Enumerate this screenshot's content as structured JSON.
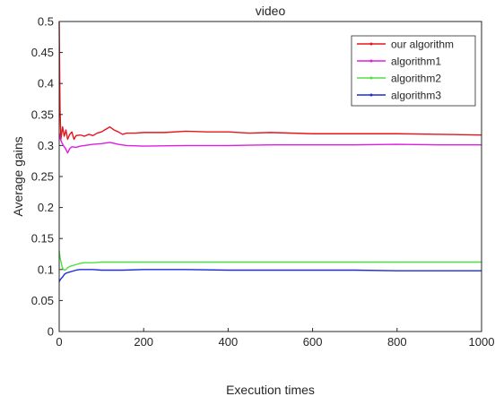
{
  "chart_data": {
    "type": "line",
    "title": "video",
    "xlabel": "Execution times",
    "ylabel": "Average gains",
    "xlim": [
      0,
      1000
    ],
    "ylim": [
      0,
      0.5
    ],
    "xticks": [
      0,
      200,
      400,
      600,
      800,
      1000
    ],
    "yticks": [
      0,
      0.05,
      0.1,
      0.15,
      0.2,
      0.25,
      0.3,
      0.35,
      0.4,
      0.45,
      0.5
    ],
    "grid": false,
    "legend_position": "top-right",
    "series": [
      {
        "name": "our algorithm",
        "color": "#e8141b",
        "x": [
          0,
          2,
          4,
          8,
          12,
          16,
          20,
          25,
          30,
          35,
          40,
          50,
          60,
          70,
          80,
          90,
          100,
          110,
          120,
          130,
          140,
          150,
          160,
          180,
          200,
          250,
          300,
          350,
          400,
          450,
          500,
          600,
          700,
          800,
          900,
          1000
        ],
        "y": [
          0.5,
          0.36,
          0.31,
          0.33,
          0.315,
          0.325,
          0.31,
          0.318,
          0.322,
          0.31,
          0.316,
          0.317,
          0.315,
          0.318,
          0.316,
          0.32,
          0.322,
          0.326,
          0.33,
          0.325,
          0.322,
          0.318,
          0.32,
          0.32,
          0.321,
          0.321,
          0.323,
          0.322,
          0.322,
          0.32,
          0.321,
          0.319,
          0.319,
          0.319,
          0.318,
          0.317
        ]
      },
      {
        "name": "algorithm1",
        "color": "#e21be2",
        "x": [
          0,
          3,
          6,
          10,
          15,
          20,
          25,
          30,
          40,
          50,
          60,
          80,
          100,
          120,
          140,
          160,
          200,
          300,
          400,
          500,
          600,
          700,
          800,
          900,
          1000
        ],
        "y": [
          0.32,
          0.31,
          0.305,
          0.3,
          0.295,
          0.288,
          0.295,
          0.298,
          0.297,
          0.299,
          0.3,
          0.302,
          0.303,
          0.305,
          0.302,
          0.3,
          0.299,
          0.3,
          0.3,
          0.301,
          0.301,
          0.301,
          0.302,
          0.301,
          0.301
        ]
      },
      {
        "name": "algorithm2",
        "color": "#4ee043",
        "x": [
          0,
          2,
          5,
          8,
          12,
          16,
          20,
          25,
          30,
          40,
          50,
          60,
          80,
          100,
          150,
          200,
          300,
          400,
          500,
          600,
          700,
          800,
          900,
          1000
        ],
        "y": [
          0.13,
          0.12,
          0.11,
          0.102,
          0.099,
          0.1,
          0.103,
          0.105,
          0.106,
          0.108,
          0.11,
          0.111,
          0.111,
          0.112,
          0.112,
          0.112,
          0.112,
          0.112,
          0.112,
          0.112,
          0.112,
          0.112,
          0.112,
          0.112
        ]
      },
      {
        "name": "algorithm3",
        "color": "#1c2bd9",
        "x": [
          0,
          2,
          4,
          8,
          12,
          16,
          20,
          25,
          30,
          40,
          50,
          60,
          80,
          100,
          150,
          200,
          300,
          400,
          500,
          600,
          700,
          800,
          900,
          1000
        ],
        "y": [
          0.08,
          0.083,
          0.085,
          0.088,
          0.092,
          0.094,
          0.095,
          0.096,
          0.097,
          0.099,
          0.1,
          0.1,
          0.1,
          0.099,
          0.099,
          0.1,
          0.1,
          0.099,
          0.099,
          0.099,
          0.099,
          0.098,
          0.098,
          0.098
        ]
      }
    ]
  }
}
